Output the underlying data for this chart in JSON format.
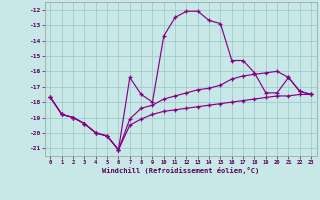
{
  "xlabel": "Windchill (Refroidissement éolien,°C)",
  "background_color": "#c8e8e8",
  "grid_color": "#a0cccc",
  "line_color": "#880088",
  "xlim": [
    -0.5,
    23.5
  ],
  "ylim": [
    -21.5,
    -11.5
  ],
  "yticks": [
    -21,
    -20,
    -19,
    -18,
    -17,
    -16,
    -15,
    -14,
    -13,
    -12
  ],
  "xticks": [
    0,
    1,
    2,
    3,
    4,
    5,
    6,
    7,
    8,
    9,
    10,
    11,
    12,
    13,
    14,
    15,
    16,
    17,
    18,
    19,
    20,
    21,
    22,
    23
  ],
  "series1_x": [
    0,
    1,
    2,
    3,
    4,
    5,
    6,
    7,
    8,
    9,
    10,
    11,
    12,
    13,
    14,
    15,
    16,
    17,
    18,
    19,
    20,
    21,
    22,
    23
  ],
  "series1_y": [
    -17.7,
    -18.8,
    -19.0,
    -19.4,
    -20.0,
    -20.2,
    -21.1,
    -16.4,
    -17.5,
    -18.0,
    -13.7,
    -12.5,
    -12.1,
    -12.1,
    -12.7,
    -12.9,
    -15.3,
    -15.3,
    -16.1,
    -17.4,
    -17.4,
    -16.4,
    -17.3,
    -17.5
  ],
  "series2_x": [
    0,
    1,
    2,
    3,
    4,
    5,
    6,
    7,
    8,
    9,
    10,
    11,
    12,
    13,
    14,
    15,
    16,
    17,
    18,
    19,
    20,
    21,
    22,
    23
  ],
  "series2_y": [
    -17.7,
    -18.8,
    -19.0,
    -19.4,
    -20.0,
    -20.2,
    -21.1,
    -19.1,
    -18.4,
    -18.2,
    -17.8,
    -17.6,
    -17.4,
    -17.2,
    -17.1,
    -16.9,
    -16.5,
    -16.3,
    -16.2,
    -16.1,
    -16.0,
    -16.4,
    -17.3,
    -17.5
  ],
  "series3_x": [
    0,
    1,
    2,
    3,
    4,
    5,
    6,
    7,
    8,
    9,
    10,
    11,
    12,
    13,
    14,
    15,
    16,
    17,
    18,
    19,
    20,
    21,
    22,
    23
  ],
  "series3_y": [
    -17.7,
    -18.8,
    -19.0,
    -19.4,
    -20.0,
    -20.2,
    -21.1,
    -19.5,
    -19.1,
    -18.8,
    -18.6,
    -18.5,
    -18.4,
    -18.3,
    -18.2,
    -18.1,
    -18.0,
    -17.9,
    -17.8,
    -17.7,
    -17.6,
    -17.6,
    -17.5,
    -17.5
  ]
}
